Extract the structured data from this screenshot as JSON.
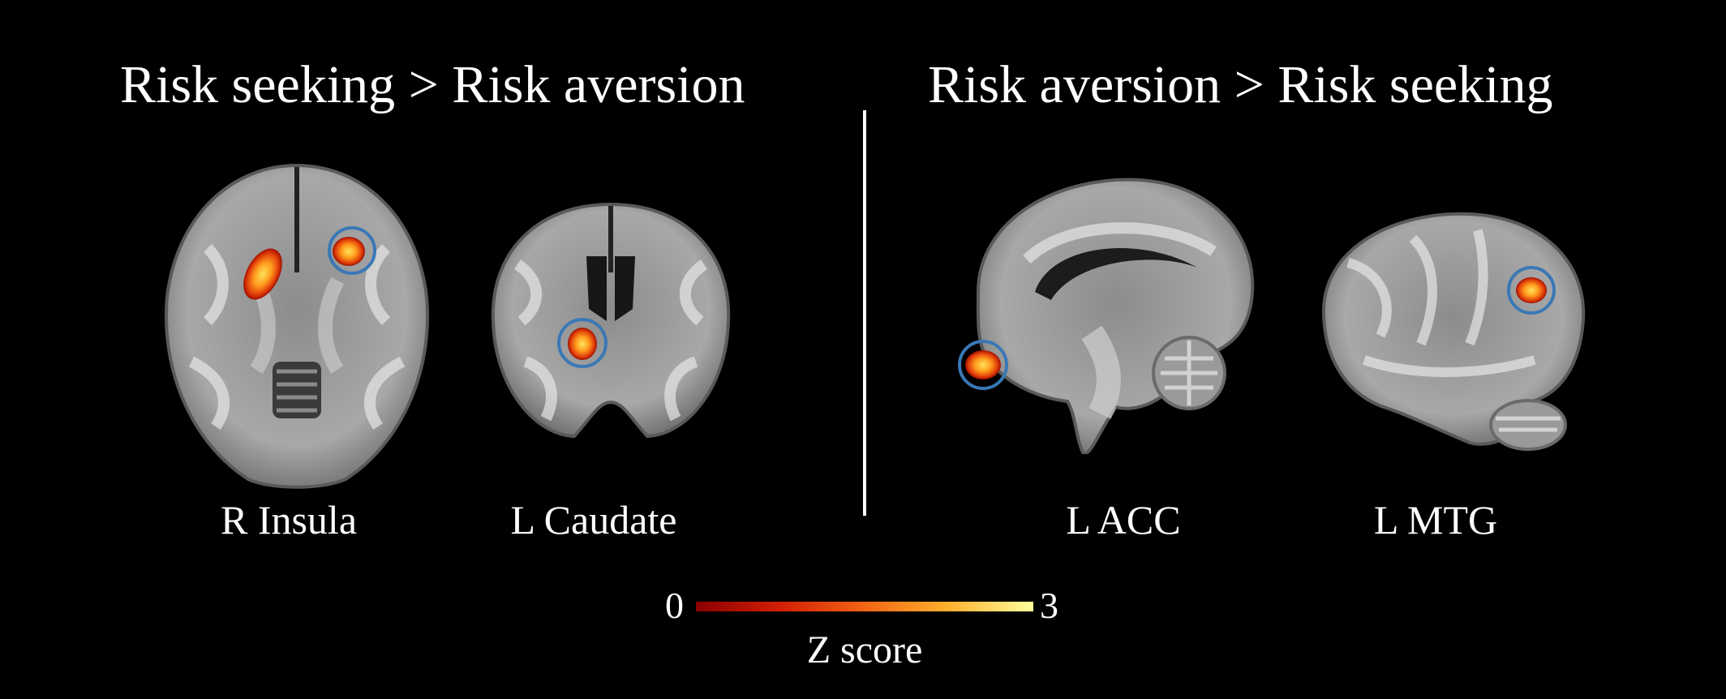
{
  "headers": {
    "left": "Risk seeking  >  Risk aversion",
    "right": "Risk aversion  >  Risk seeking"
  },
  "regions": [
    {
      "label": "R Insula",
      "view": "axial"
    },
    {
      "label": "L Caudate",
      "view": "coronal"
    },
    {
      "label": "L ACC",
      "view": "sagittal-medial"
    },
    {
      "label": "L MTG",
      "view": "sagittal-lateral"
    }
  ],
  "colorbar": {
    "min_label": "0",
    "max_label": "3",
    "title": "Z score",
    "colors": [
      "#8b0000",
      "#d21f05",
      "#f26414",
      "#ffb22e",
      "#ffff9c"
    ]
  },
  "colors": {
    "background": "#000000",
    "highlight_ring": "#3a78b5",
    "activation_hot": "#f26414",
    "activation_core": "#ffd23c"
  }
}
